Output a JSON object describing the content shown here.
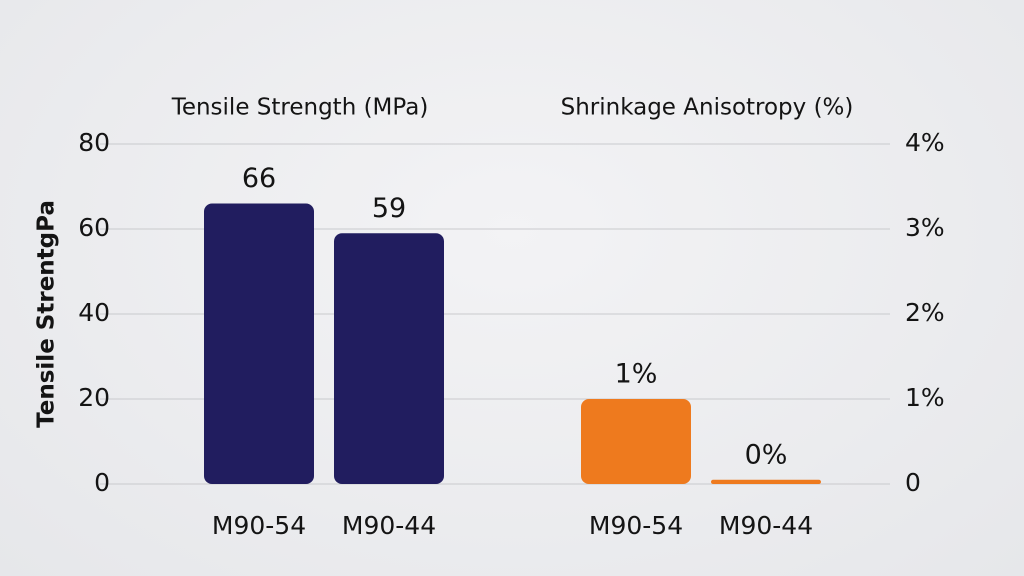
{
  "chart_data": [
    {
      "type": "bar",
      "title": "Tensile Strength (MPa)",
      "ylabel": "Tensile StrentgPa",
      "categories": [
        "M90-54",
        "M90-44"
      ],
      "values": [
        66,
        59
      ],
      "color": "#211d5f",
      "ylim": [
        0,
        80
      ],
      "yticks": [
        0,
        20,
        40,
        60,
        80
      ],
      "grid": true
    },
    {
      "type": "bar",
      "title": "Shrinkage Anisotropy (%)",
      "axis": "y2",
      "categories": [
        "M90-54",
        "M90-44"
      ],
      "values": [
        1,
        0.05
      ],
      "value_labels": [
        "1%",
        "0%"
      ],
      "color": "#ee7a1e",
      "y2lim": [
        0,
        4
      ],
      "y2ticks": [
        0,
        {
          "value": 1,
          "label": "1%"
        },
        {
          "value": 2,
          "label": "2%"
        },
        {
          "value": 3,
          "label": "3%"
        },
        {
          "value": 4,
          "label": "4%"
        }
      ]
    }
  ]
}
